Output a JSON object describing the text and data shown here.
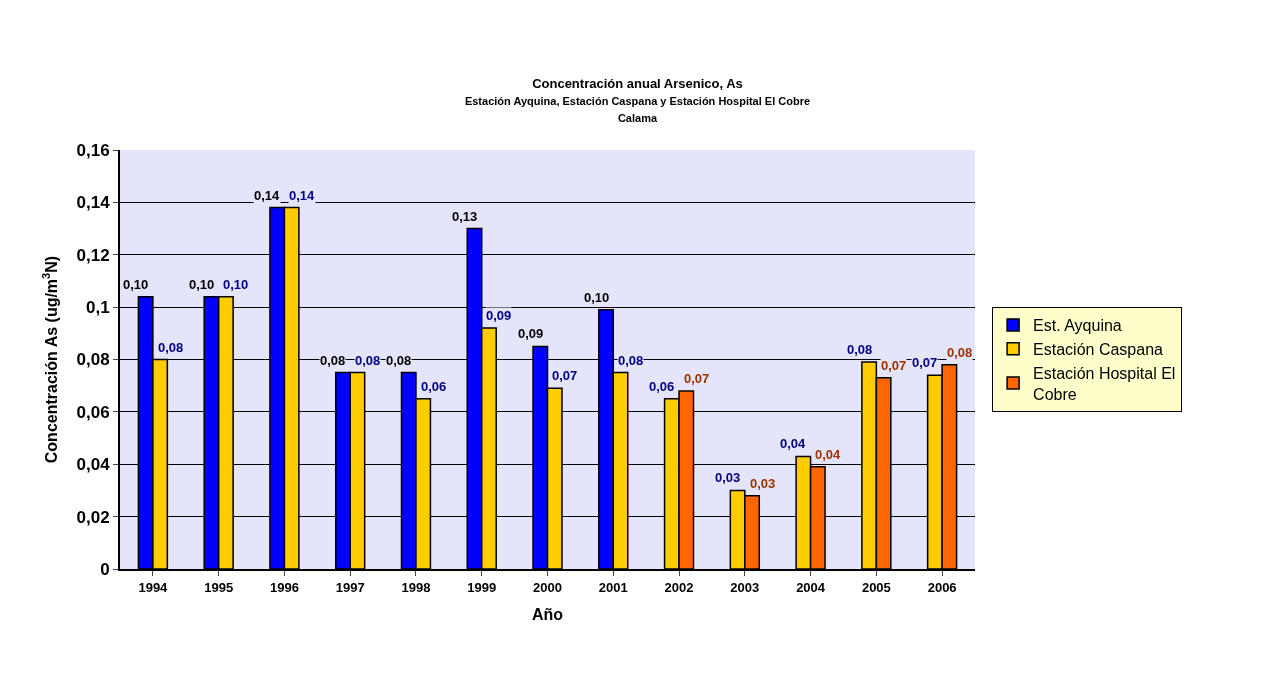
{
  "chart_data": {
    "type": "bar",
    "title": "Concentración anual Arsenico, As",
    "subtitle": "Estación Ayquina, Estación Caspana y Estación Hospital El Cobre\nCalama",
    "xlabel": "Año",
    "ylabel": "Concentración As (ug/m$^{3}$N)",
    "categories": [
      "1994",
      "1995",
      "1996",
      "1997",
      "1998",
      "1999",
      "2000",
      "2001",
      "2002",
      "2003",
      "2004",
      "2005",
      "2006"
    ],
    "series": [
      {
        "name": "Est. Ayquina",
        "color": "#0000ff",
        "values": [
          0.104,
          0.104,
          0.138,
          0.075,
          0.075,
          0.13,
          0.085,
          0.099,
          null,
          null,
          null,
          null,
          null
        ],
        "value_labels": [
          "0,10",
          "0,10",
          "0,14",
          "0,08",
          "0,08",
          "0,13",
          "0,09",
          "0,10",
          null,
          null,
          null,
          null,
          null
        ]
      },
      {
        "name": "Estación Caspana",
        "color": "#ffcc00",
        "values": [
          0.08,
          0.104,
          0.138,
          0.075,
          0.065,
          0.092,
          0.069,
          0.075,
          0.065,
          0.03,
          0.043,
          0.079,
          0.074
        ],
        "value_labels": [
          "0,08",
          "0,10",
          "0,14",
          "0,08",
          "0,06",
          "0,09",
          "0,07",
          "0,08",
          "0,06",
          "0,03",
          "0,04",
          "0,08",
          "0,07"
        ]
      },
      {
        "name": "Estación Hospital El\nCobre",
        "color": "#ff6600",
        "values": [
          null,
          null,
          null,
          null,
          null,
          null,
          null,
          null,
          0.068,
          0.028,
          0.039,
          0.073,
          0.078
        ],
        "value_labels": [
          null,
          null,
          null,
          null,
          null,
          null,
          null,
          null,
          "0,07",
          "0,03",
          "0,04",
          "0,07",
          "0,08"
        ]
      }
    ],
    "ylim": [
      0,
      0.16
    ],
    "yticks": [
      0,
      {
        "value": 0.02,
        "label": "0,02"
      },
      {
        "value": 0.04,
        "label": "0,04"
      },
      {
        "value": 0.06,
        "label": "0,06"
      },
      {
        "value": 0.08,
        "label": "0,08"
      },
      {
        "value": 0.1,
        "label": "0,1"
      },
      {
        "value": 0.12,
        "label": "0,12"
      },
      {
        "value": 0.14,
        "label": "0,14"
      },
      {
        "value": 0.16,
        "label": "0,16"
      }
    ],
    "grid": "y",
    "legend": "right"
  }
}
